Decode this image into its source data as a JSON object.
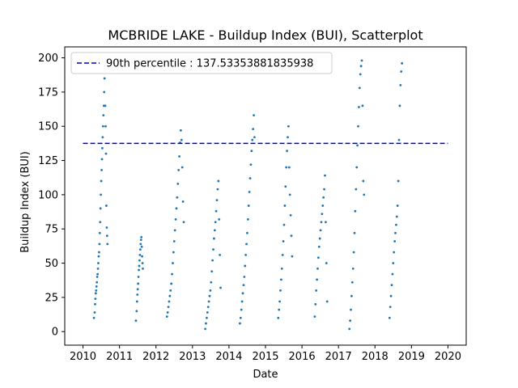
{
  "chart_data": {
    "type": "scatter",
    "title": "MCBRIDE LAKE - Buildup Index (BUI), Scatterplot",
    "xlabel": "Date",
    "ylabel": "Buildup Index (BUI)",
    "xlim": [
      2009.5,
      2020.5
    ],
    "ylim": [
      -9.9,
      208.0
    ],
    "x_ticks": [
      2010,
      2011,
      2012,
      2013,
      2014,
      2015,
      2016,
      2017,
      2018,
      2019,
      2020
    ],
    "x_tick_labels": [
      "2010",
      "2011",
      "2012",
      "2013",
      "2014",
      "2015",
      "2016",
      "2017",
      "2018",
      "2019",
      "2020"
    ],
    "y_ticks": [
      0,
      25,
      50,
      75,
      100,
      125,
      150,
      175,
      200
    ],
    "y_tick_labels": [
      "0",
      "25",
      "50",
      "75",
      "100",
      "125",
      "150",
      "175",
      "200"
    ],
    "grid": false,
    "legend_position": "top-left",
    "series": [
      {
        "kind": "points",
        "color": "#1f77b4",
        "points": [
          [
            2010.3,
            10
          ],
          [
            2010.32,
            14
          ],
          [
            2010.33,
            20
          ],
          [
            2010.34,
            24
          ],
          [
            2010.35,
            28
          ],
          [
            2010.36,
            30
          ],
          [
            2010.37,
            33
          ],
          [
            2010.38,
            36
          ],
          [
            2010.39,
            40
          ],
          [
            2010.4,
            42
          ],
          [
            2010.41,
            46
          ],
          [
            2010.42,
            50
          ],
          [
            2010.43,
            55
          ],
          [
            2010.44,
            58
          ],
          [
            2010.45,
            64
          ],
          [
            2010.46,
            72
          ],
          [
            2010.47,
            80
          ],
          [
            2010.48,
            90
          ],
          [
            2010.49,
            100
          ],
          [
            2010.5,
            110
          ],
          [
            2010.51,
            118
          ],
          [
            2010.52,
            126
          ],
          [
            2010.53,
            134
          ],
          [
            2010.54,
            142
          ],
          [
            2010.55,
            150
          ],
          [
            2010.56,
            158
          ],
          [
            2010.57,
            165
          ],
          [
            2010.58,
            175
          ],
          [
            2010.59,
            185
          ],
          [
            2010.6,
            190
          ],
          [
            2010.61,
            165
          ],
          [
            2010.62,
            150
          ],
          [
            2010.63,
            130
          ],
          [
            2010.64,
            92
          ],
          [
            2010.65,
            76
          ],
          [
            2010.66,
            70
          ],
          [
            2010.67,
            64
          ],
          [
            2011.45,
            8
          ],
          [
            2011.47,
            15
          ],
          [
            2011.48,
            22
          ],
          [
            2011.49,
            27
          ],
          [
            2011.5,
            31
          ],
          [
            2011.51,
            35
          ],
          [
            2011.52,
            40
          ],
          [
            2011.53,
            45
          ],
          [
            2011.54,
            48
          ],
          [
            2011.55,
            52
          ],
          [
            2011.56,
            56
          ],
          [
            2011.57,
            60
          ],
          [
            2011.58,
            64
          ],
          [
            2011.59,
            67
          ],
          [
            2011.6,
            69
          ],
          [
            2011.61,
            62
          ],
          [
            2011.62,
            55
          ],
          [
            2011.63,
            50
          ],
          [
            2011.64,
            46
          ],
          [
            2012.3,
            11
          ],
          [
            2012.32,
            14
          ],
          [
            2012.34,
            18
          ],
          [
            2012.36,
            22
          ],
          [
            2012.38,
            26
          ],
          [
            2012.4,
            30
          ],
          [
            2012.42,
            35
          ],
          [
            2012.44,
            42
          ],
          [
            2012.46,
            50
          ],
          [
            2012.48,
            58
          ],
          [
            2012.5,
            66
          ],
          [
            2012.52,
            74
          ],
          [
            2012.54,
            82
          ],
          [
            2012.56,
            90
          ],
          [
            2012.58,
            98
          ],
          [
            2012.6,
            108
          ],
          [
            2012.62,
            118
          ],
          [
            2012.64,
            128
          ],
          [
            2012.66,
            138
          ],
          [
            2012.68,
            147
          ],
          [
            2012.7,
            140
          ],
          [
            2012.72,
            120
          ],
          [
            2012.74,
            95
          ],
          [
            2012.76,
            80
          ],
          [
            2013.35,
            2
          ],
          [
            2013.37,
            6
          ],
          [
            2013.39,
            10
          ],
          [
            2013.41,
            14
          ],
          [
            2013.43,
            18
          ],
          [
            2013.45,
            22
          ],
          [
            2013.47,
            26
          ],
          [
            2013.49,
            30
          ],
          [
            2013.51,
            36
          ],
          [
            2013.53,
            44
          ],
          [
            2013.55,
            52
          ],
          [
            2013.57,
            60
          ],
          [
            2013.59,
            68
          ],
          [
            2013.61,
            74
          ],
          [
            2013.63,
            80
          ],
          [
            2013.65,
            88
          ],
          [
            2013.67,
            96
          ],
          [
            2013.69,
            104
          ],
          [
            2013.71,
            110
          ],
          [
            2013.73,
            82
          ],
          [
            2013.75,
            56
          ],
          [
            2013.77,
            32
          ],
          [
            2014.3,
            6
          ],
          [
            2014.32,
            10
          ],
          [
            2014.34,
            16
          ],
          [
            2014.36,
            22
          ],
          [
            2014.38,
            28
          ],
          [
            2014.4,
            34
          ],
          [
            2014.42,
            40
          ],
          [
            2014.44,
            48
          ],
          [
            2014.46,
            56
          ],
          [
            2014.48,
            64
          ],
          [
            2014.5,
            72
          ],
          [
            2014.52,
            82
          ],
          [
            2014.54,
            92
          ],
          [
            2014.56,
            102
          ],
          [
            2014.58,
            112
          ],
          [
            2014.6,
            122
          ],
          [
            2014.62,
            132
          ],
          [
            2014.64,
            140
          ],
          [
            2014.66,
            148
          ],
          [
            2014.68,
            158
          ],
          [
            2014.7,
            142
          ],
          [
            2015.35,
            10
          ],
          [
            2015.37,
            16
          ],
          [
            2015.39,
            22
          ],
          [
            2015.41,
            30
          ],
          [
            2015.43,
            38
          ],
          [
            2015.45,
            46
          ],
          [
            2015.47,
            56
          ],
          [
            2015.49,
            66
          ],
          [
            2015.51,
            78
          ],
          [
            2015.53,
            92
          ],
          [
            2015.55,
            106
          ],
          [
            2015.57,
            120
          ],
          [
            2015.59,
            132
          ],
          [
            2015.61,
            142
          ],
          [
            2015.63,
            150
          ],
          [
            2015.65,
            120
          ],
          [
            2015.67,
            100
          ],
          [
            2015.69,
            85
          ],
          [
            2015.71,
            70
          ],
          [
            2015.73,
            55
          ],
          [
            2016.35,
            11
          ],
          [
            2016.37,
            20
          ],
          [
            2016.39,
            30
          ],
          [
            2016.41,
            38
          ],
          [
            2016.43,
            46
          ],
          [
            2016.45,
            54
          ],
          [
            2016.47,
            62
          ],
          [
            2016.49,
            68
          ],
          [
            2016.51,
            74
          ],
          [
            2016.53,
            80
          ],
          [
            2016.55,
            86
          ],
          [
            2016.57,
            92
          ],
          [
            2016.59,
            98
          ],
          [
            2016.61,
            104
          ],
          [
            2016.63,
            114
          ],
          [
            2016.65,
            80
          ],
          [
            2016.67,
            50
          ],
          [
            2016.69,
            22
          ],
          [
            2017.3,
            2
          ],
          [
            2017.32,
            8
          ],
          [
            2017.34,
            16
          ],
          [
            2017.36,
            26
          ],
          [
            2017.38,
            36
          ],
          [
            2017.4,
            46
          ],
          [
            2017.42,
            58
          ],
          [
            2017.44,
            72
          ],
          [
            2017.46,
            88
          ],
          [
            2017.48,
            104
          ],
          [
            2017.5,
            120
          ],
          [
            2017.52,
            136
          ],
          [
            2017.54,
            150
          ],
          [
            2017.56,
            164
          ],
          [
            2017.58,
            178
          ],
          [
            2017.6,
            188
          ],
          [
            2017.62,
            194
          ],
          [
            2017.64,
            198
          ],
          [
            2017.66,
            165
          ],
          [
            2017.68,
            110
          ],
          [
            2017.7,
            100
          ],
          [
            2018.4,
            10
          ],
          [
            2018.42,
            18
          ],
          [
            2018.44,
            26
          ],
          [
            2018.46,
            34
          ],
          [
            2018.48,
            42
          ],
          [
            2018.5,
            50
          ],
          [
            2018.52,
            58
          ],
          [
            2018.54,
            66
          ],
          [
            2018.56,
            72
          ],
          [
            2018.58,
            78
          ],
          [
            2018.6,
            84
          ],
          [
            2018.62,
            92
          ],
          [
            2018.64,
            110
          ],
          [
            2018.66,
            140
          ],
          [
            2018.68,
            165
          ],
          [
            2018.7,
            180
          ],
          [
            2018.72,
            190
          ],
          [
            2018.74,
            196
          ]
        ]
      },
      {
        "kind": "hline",
        "name": "90th percentile : 137.53353881835938",
        "y": 137.53353881835938,
        "x_range": [
          2010,
          2020
        ],
        "color": "#0000cc",
        "style": "dashed"
      }
    ]
  }
}
